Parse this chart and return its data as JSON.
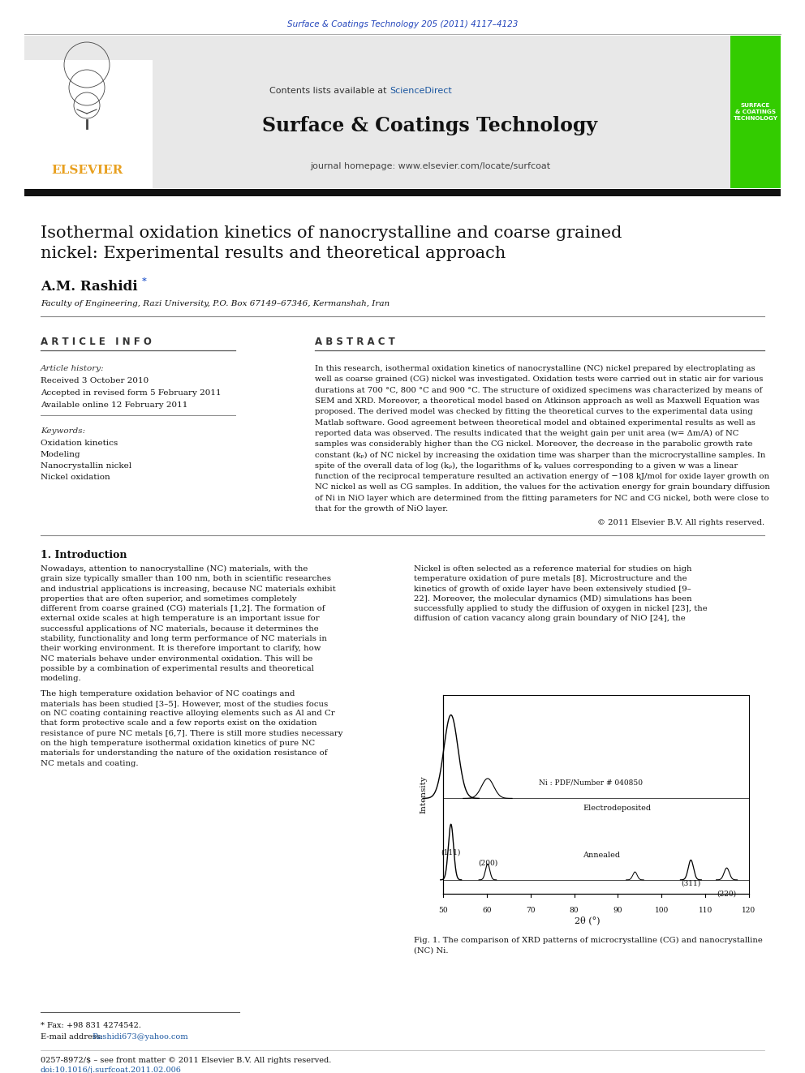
{
  "page_width": 9.92,
  "page_height": 13.23,
  "background_color": "#ffffff",
  "top_journal_ref": "Surface & Coatings Technology 205 (2011) 4117–4123",
  "top_journal_ref_color": "#2244bb",
  "header_bg": "#e8e8e8",
  "header_contents_text": "Contents lists available at ",
  "header_sciencedirect": "ScienceDirect",
  "header_sciencedirect_color": "#1a56a0",
  "header_journal_name": "Surface & Coatings Technology",
  "header_homepage": "journal homepage: www.elsevier.com/locate/surfcoat",
  "elsevier_text": "ELSEVIER",
  "elsevier_color": "#e8a020",
  "green_box_color": "#33cc00",
  "green_box_text": "SURFACE\n& COATINGS\nTECHNOLOGY",
  "article_title_line1": "Isothermal oxidation kinetics of nanocrystalline and coarse grained",
  "article_title_line2": "nickel: Experimental results and theoretical approach",
  "author_name": "A.M. Rashidi ",
  "author_star": "*",
  "affiliation": "Faculty of Engineering, Razi University, P.O. Box 67149–67346, Kermanshah, Iran",
  "section_article_info": "A R T I C L E   I N F O",
  "section_abstract": "A B S T R A C T",
  "article_history_label": "Article history:",
  "received": "Received 3 October 2010",
  "accepted": "Accepted in revised form 5 February 2011",
  "available": "Available online 12 February 2011",
  "keywords_label": "Keywords:",
  "keywords": [
    "Oxidation kinetics",
    "Modeling",
    "Nanocrystallin nickel",
    "Nickel oxidation"
  ],
  "copyright_text": "© 2011 Elsevier B.V. All rights reserved.",
  "intro_heading": "1. Introduction",
  "fig1_caption_line1": "Fig. 1. The comparison of XRD patterns of microcrystalline (CG) and nanocrystalline",
  "fig1_caption_line2": "(NC) Ni.",
  "footnote_star": "* Fax: +98 831 4274542.",
  "footnote_email_label": "E-mail address: ",
  "footnote_email": "Rashidi673@yahoo.com",
  "footnote_email_color": "#1a56a0",
  "footer_issn": "0257-8972/$ – see front matter © 2011 Elsevier B.V. All rights reserved.",
  "footer_doi": "doi:10.1016/j.surfcoat.2011.02.006",
  "footer_doi_color": "#1a56a0",
  "text_color": "#000000"
}
